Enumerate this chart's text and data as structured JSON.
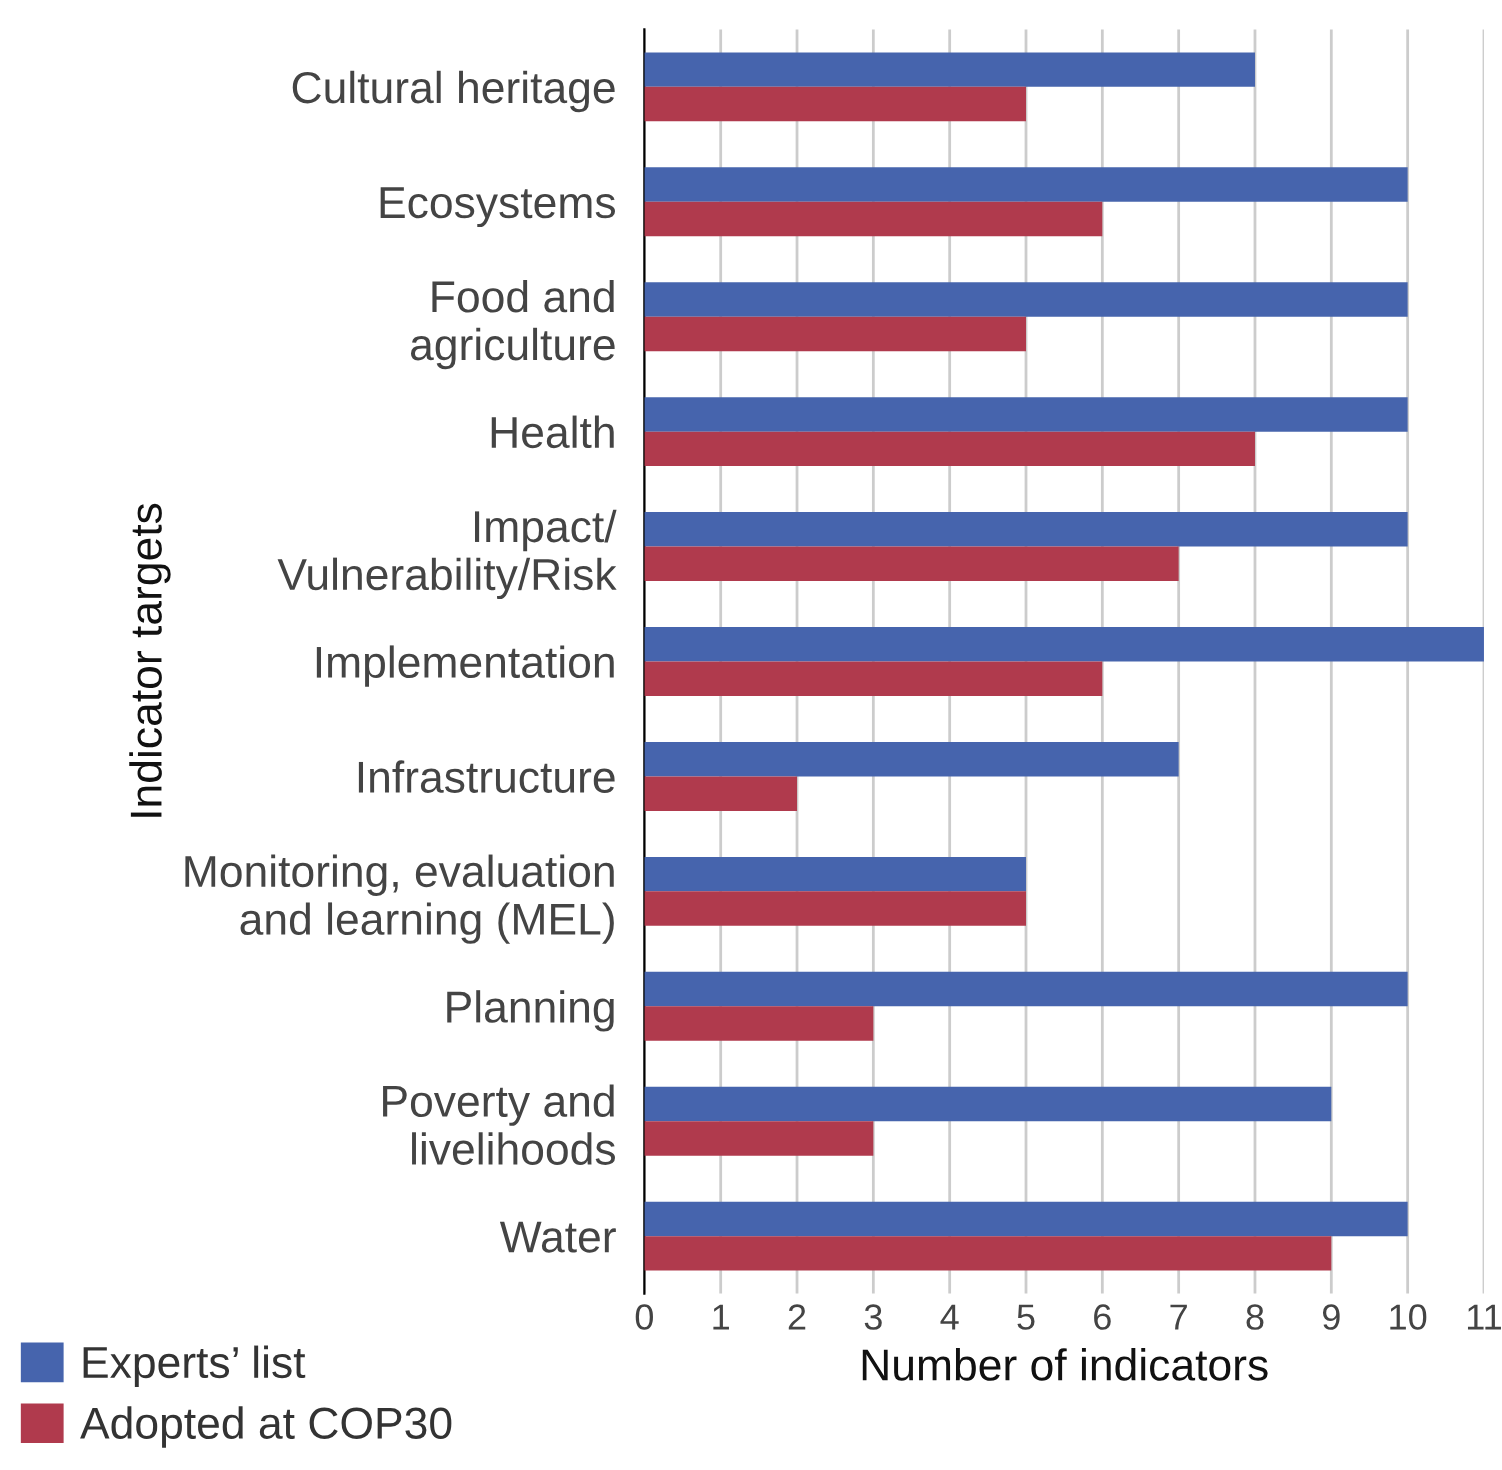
{
  "chart_data": {
    "type": "bar",
    "orientation": "horizontal",
    "ylabel": "Indicator targets",
    "xlabel": "Number of indicators",
    "categories": [
      "Cultural heritage",
      "Ecosystems",
      "Food and\nagriculture",
      "Health",
      "Impact/\nVulnerability/Risk",
      "Implementation",
      "Infrastructure",
      "Monitoring, evaluation\nand learning (MEL)",
      "Planning",
      "Poverty and\nlivelihoods",
      "Water"
    ],
    "series": [
      {
        "name": "Experts’ list",
        "color": "#4664ad",
        "values": [
          8,
          10,
          10,
          10,
          10,
          11,
          7,
          5,
          10,
          9,
          10
        ]
      },
      {
        "name": "Adopted at COP30",
        "color": "#b03a4d",
        "values": [
          5,
          6,
          5,
          8,
          7,
          6,
          2,
          5,
          3,
          3,
          9
        ]
      }
    ],
    "xlim": [
      0,
      11
    ],
    "xticks": [
      0,
      1,
      2,
      3,
      4,
      5,
      6,
      7,
      8,
      9,
      10,
      11
    ],
    "grid": "x",
    "legend": "bottom left"
  }
}
